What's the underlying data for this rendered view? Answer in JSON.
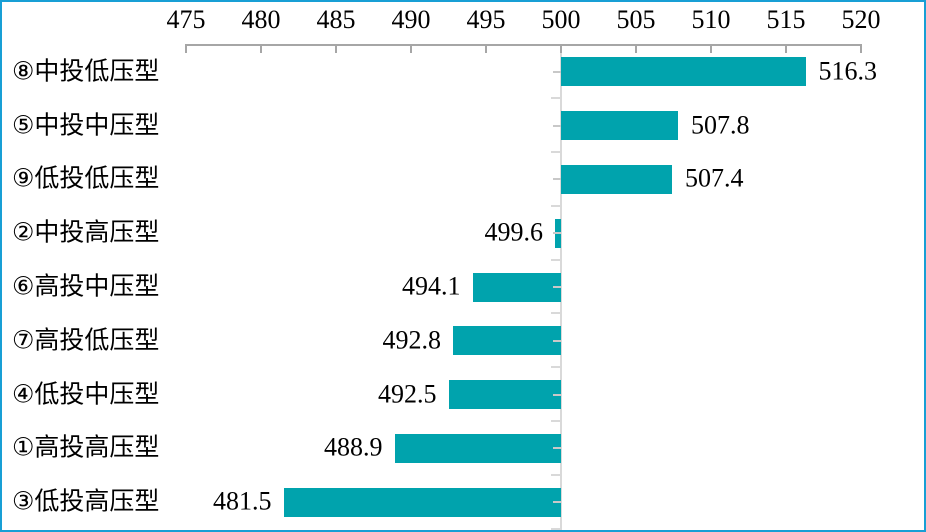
{
  "chart_data": {
    "type": "bar",
    "orientation": "horizontal",
    "title": "",
    "categories": [
      "⑧中投低压型",
      "⑤中投中压型",
      "⑨低投低压型",
      "②中投高压型",
      "⑥高投中压型",
      "⑦高投低压型",
      "④低投中压型",
      "①高投高压型",
      "③低投高压型"
    ],
    "values": [
      516.3,
      507.8,
      507.4,
      499.6,
      494.1,
      492.8,
      492.5,
      488.9,
      481.5
    ],
    "value_labels": [
      "516.3",
      "507.8",
      "507.4",
      "499.6",
      "494.1",
      "492.8",
      "492.5",
      "488.9",
      "481.5"
    ],
    "baseline": 500,
    "xlim": [
      475,
      520
    ],
    "xticks": [
      475,
      480,
      485,
      490,
      495,
      500,
      505,
      510,
      515,
      520
    ],
    "xlabel": "",
    "ylabel": "",
    "axis_position": "top",
    "grid": false,
    "legend": false,
    "colors": {
      "bar": "#00a3ad",
      "axis_line": "#a6a6a6",
      "baseline": "#d9d9d9",
      "boundary_tick": "#d9d9d9",
      "center_tick": "#c8c8c8",
      "text": "#000000",
      "figure_border": "#189fd5",
      "background": "#ffffff"
    }
  }
}
